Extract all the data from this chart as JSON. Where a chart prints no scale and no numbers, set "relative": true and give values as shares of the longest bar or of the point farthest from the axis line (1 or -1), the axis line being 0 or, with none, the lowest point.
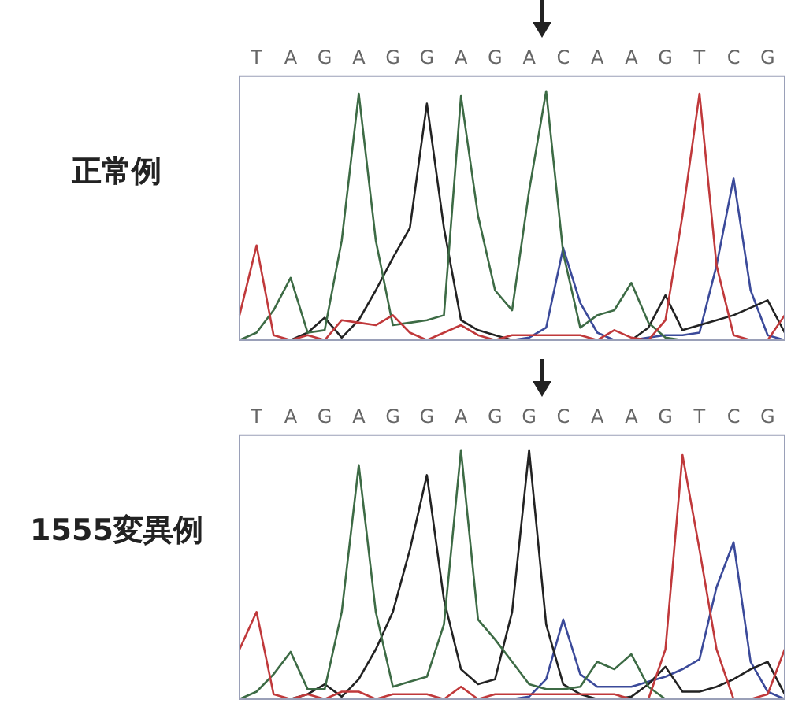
{
  "chart_data": [
    {
      "type": "line",
      "title": "正常例",
      "relative": true,
      "categories": [
        null,
        "T",
        null,
        "A",
        null,
        "G",
        null,
        "A",
        null,
        "G",
        null,
        "G",
        null,
        "A",
        null,
        "G",
        null,
        "A",
        null,
        "C",
        null,
        "A",
        null,
        "A",
        null,
        "G",
        null,
        "T",
        null,
        "C",
        null,
        "G",
        null
      ],
      "series": [
        {
          "color": "#c0393b",
          "values": [
            0.1,
            0.38,
            0.02,
            0,
            0.02,
            0,
            0.08,
            0.07,
            0.06,
            0.1,
            0.03,
            0,
            0.03,
            0.06,
            0.02,
            0,
            0.02,
            0.02,
            0.02,
            0.02,
            0.02,
            0,
            0.04,
            0.01,
            0,
            0.08,
            0.5,
            0.99,
            0.3,
            0.02,
            0,
            0,
            0.1
          ]
        },
        {
          "color": "#3d6b45",
          "values": [
            0,
            0.03,
            0.12,
            0.25,
            0.03,
            0.04,
            0.4,
            0.99,
            0.4,
            0.06,
            0.07,
            0.08,
            0.1,
            0.98,
            0.5,
            0.2,
            0.12,
            0.6,
            1,
            0.35,
            0.05,
            0.1,
            0.12,
            0.23,
            0.07,
            0.01,
            0,
            0,
            0,
            0,
            0,
            0,
            0
          ]
        },
        {
          "color": "#222222",
          "values": [
            0,
            0,
            0,
            0,
            0.03,
            0.09,
            0.01,
            0.08,
            0.2,
            0.33,
            0.45,
            0.95,
            0.45,
            0.08,
            0.04,
            0.02,
            0,
            0,
            0,
            0,
            0,
            0,
            0,
            0,
            0.05,
            0.18,
            0.04,
            0.06,
            0.08,
            0.1,
            0.13,
            0.16,
            0.03
          ]
        },
        {
          "color": "#3b4a9a",
          "values": [
            0,
            0,
            0,
            0,
            0,
            0,
            0,
            0,
            0,
            0,
            0,
            0,
            0,
            0,
            0,
            0,
            0,
            0.01,
            0.05,
            0.37,
            0.15,
            0.03,
            0,
            0,
            0.01,
            0.02,
            0.02,
            0.03,
            0.3,
            0.65,
            0.2,
            0.02,
            0
          ]
        }
      ]
    },
    {
      "type": "line",
      "title": "1555変異例",
      "relative": true,
      "categories": [
        null,
        "T",
        null,
        "A",
        null,
        "G",
        null,
        "A",
        null,
        "G",
        null,
        "G",
        null,
        "A",
        null,
        "G",
        null,
        "G",
        null,
        "C",
        null,
        "A",
        null,
        "A",
        null,
        "G",
        null,
        "T",
        null,
        "C",
        null,
        "G",
        null
      ],
      "series": [
        {
          "color": "#c0393b",
          "values": [
            0.2,
            0.35,
            0.02,
            0,
            0.02,
            0,
            0.03,
            0.03,
            0,
            0.02,
            0.02,
            0.02,
            0,
            0.05,
            0,
            0.02,
            0.02,
            0.02,
            0.02,
            0.02,
            0.02,
            0.02,
            0.02,
            0,
            0,
            0.2,
            0.98,
            0.6,
            0.2,
            0,
            0,
            0.02,
            0.2
          ]
        },
        {
          "color": "#3d6b45",
          "values": [
            0,
            0.03,
            0.1,
            0.19,
            0.04,
            0.04,
            0.35,
            0.94,
            0.35,
            0.05,
            0.07,
            0.09,
            0.3,
            1,
            0.32,
            0.24,
            0.15,
            0.06,
            0.04,
            0.04,
            0.05,
            0.15,
            0.12,
            0.18,
            0.05,
            0,
            0,
            0,
            0,
            0,
            0,
            0,
            0
          ]
        },
        {
          "color": "#222222",
          "values": [
            0,
            0,
            0,
            0,
            0.02,
            0.06,
            0.01,
            0.08,
            0.2,
            0.35,
            0.6,
            0.9,
            0.4,
            0.12,
            0.06,
            0.08,
            0.35,
            1,
            0.3,
            0.06,
            0.02,
            0,
            0,
            0.01,
            0.06,
            0.13,
            0.03,
            0.03,
            0.05,
            0.08,
            0.12,
            0.15,
            0.02
          ]
        },
        {
          "color": "#3b4a9a",
          "values": [
            0,
            0,
            0,
            0,
            0,
            0,
            0,
            0,
            0,
            0,
            0,
            0,
            0,
            0,
            0,
            0,
            0,
            0.01,
            0.08,
            0.32,
            0.1,
            0.05,
            0.05,
            0.05,
            0.07,
            0.09,
            0.12,
            0.16,
            0.45,
            0.63,
            0.15,
            0.03,
            0
          ]
        }
      ]
    }
  ]
}
